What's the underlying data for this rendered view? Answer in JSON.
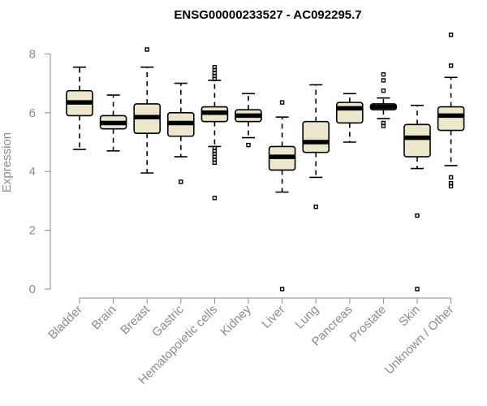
{
  "chart_data": {
    "type": "box",
    "title": "ENSG00000233527 - AC092295.7",
    "xlabel": "",
    "ylabel": "Expression",
    "ylim": [
      0,
      8
    ],
    "yticks": [
      0,
      2,
      4,
      6,
      8
    ],
    "grid": false,
    "categories": [
      "Bladder",
      "Brain",
      "Breast",
      "Gastric",
      "Hematopoietic cells",
      "Kidney",
      "Liver",
      "Lung",
      "Pancreas",
      "Prostate",
      "Skin",
      "Unknown / Other"
    ],
    "boxes": [
      {
        "category": "Bladder",
        "whisker_low": 4.75,
        "q1": 5.9,
        "median": 6.35,
        "q3": 6.75,
        "whisker_high": 7.55,
        "outliers": []
      },
      {
        "category": "Brain",
        "whisker_low": 4.7,
        "q1": 5.45,
        "median": 5.65,
        "q3": 5.9,
        "whisker_high": 6.6,
        "outliers": []
      },
      {
        "category": "Breast",
        "whisker_low": 3.95,
        "q1": 5.3,
        "median": 5.85,
        "q3": 6.3,
        "whisker_high": 7.55,
        "outliers": [
          8.15
        ]
      },
      {
        "category": "Gastric",
        "whisker_low": 4.5,
        "q1": 5.2,
        "median": 5.65,
        "q3": 6.0,
        "whisker_high": 7.0,
        "outliers": [
          3.65
        ]
      },
      {
        "category": "Hematopoietic cells",
        "whisker_low": 4.85,
        "q1": 5.7,
        "median": 6.0,
        "q3": 6.2,
        "whisker_high": 7.1,
        "outliers": [
          7.15,
          7.25,
          7.35,
          7.45,
          7.55,
          4.8,
          4.7,
          4.6,
          4.5,
          4.4,
          4.3,
          3.1
        ]
      },
      {
        "category": "Kidney",
        "whisker_low": 5.15,
        "q1": 5.7,
        "median": 5.9,
        "q3": 6.1,
        "whisker_high": 6.65,
        "outliers": [
          4.9
        ]
      },
      {
        "category": "Liver",
        "whisker_low": 3.3,
        "q1": 4.05,
        "median": 4.5,
        "q3": 4.85,
        "whisker_high": 5.85,
        "outliers": [
          6.35,
          0.0
        ]
      },
      {
        "category": "Lung",
        "whisker_low": 3.8,
        "q1": 4.65,
        "median": 5.0,
        "q3": 5.7,
        "whisker_high": 6.95,
        "outliers": [
          2.8
        ]
      },
      {
        "category": "Pancreas",
        "whisker_low": 5.0,
        "q1": 5.65,
        "median": 6.15,
        "q3": 6.35,
        "whisker_high": 6.65,
        "outliers": []
      },
      {
        "category": "Prostate",
        "whisker_low": 5.8,
        "q1": 6.1,
        "median": 6.2,
        "q3": 6.3,
        "whisker_high": 6.5,
        "outliers": [
          7.3,
          7.1,
          6.75,
          5.65,
          5.55
        ]
      },
      {
        "category": "Skin",
        "whisker_low": 4.1,
        "q1": 4.5,
        "median": 5.15,
        "q3": 5.6,
        "whisker_high": 6.25,
        "outliers": [
          2.5,
          0.0
        ]
      },
      {
        "category": "Unknown / Other",
        "whisker_low": 4.2,
        "q1": 5.4,
        "median": 5.9,
        "q3": 6.2,
        "whisker_high": 7.2,
        "outliers": [
          8.65,
          7.6,
          3.8,
          3.6,
          3.5
        ]
      }
    ]
  },
  "colors": {
    "box_fill": "#ede6cc",
    "box_stroke": "#000000",
    "axis": "#8a8a8a",
    "title": "#000000"
  }
}
